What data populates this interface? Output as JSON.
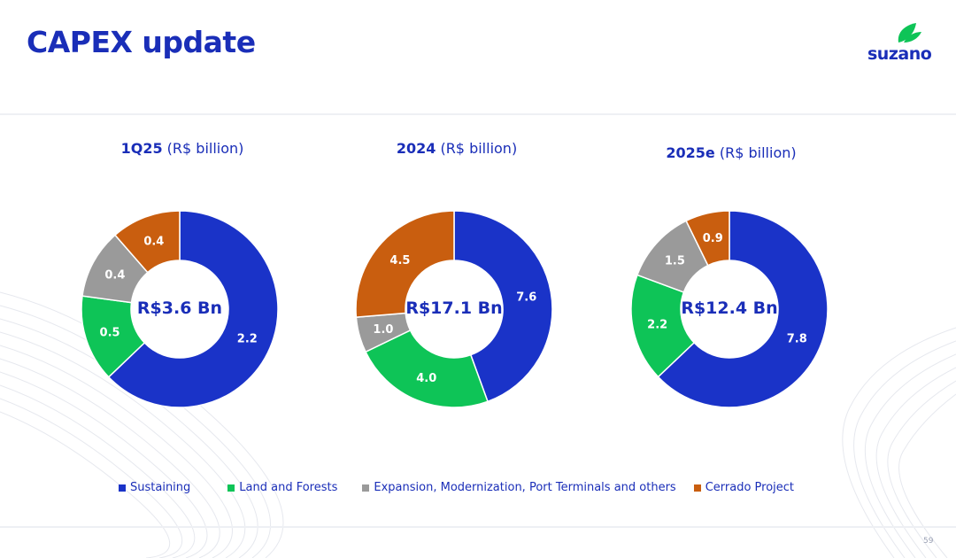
{
  "page": {
    "title": "CAPEX update",
    "logo_text": "suzano",
    "page_number": "59"
  },
  "colors": {
    "sustaining": "#1a33c8",
    "land_forests": "#0ec457",
    "expansion": "#9a9a9a",
    "cerrado": "#c95e0f"
  },
  "legend": [
    {
      "label": "Sustaining",
      "color": "#1a33c8"
    },
    {
      "label": "Land and Forests",
      "color": "#0ec457"
    },
    {
      "label": "Expansion, Modernization, Port Terminals and others",
      "color": "#9a9a9a"
    },
    {
      "label": "Cerrado Project",
      "color": "#c95e0f"
    }
  ],
  "chart_data": [
    {
      "type": "pie",
      "title_bold": "1Q25",
      "title_unit": "(R$ billion)",
      "center_label": "R$3.6 Bn",
      "categories": [
        "Sustaining",
        "Land and Forests",
        "Expansion, Modernization, Port Terminals and others",
        "Cerrado Project"
      ],
      "values": [
        2.2,
        0.5,
        0.4,
        0.4
      ],
      "labels": [
        "2.2",
        "0.5",
        "0.4",
        "0.4"
      ]
    },
    {
      "type": "pie",
      "title_bold": "2024",
      "title_unit": "(R$ billion)",
      "center_label": "R$17.1 Bn",
      "categories": [
        "Sustaining",
        "Land and Forests",
        "Expansion, Modernization, Port Terminals and others",
        "Cerrado Project"
      ],
      "values": [
        7.6,
        4.0,
        1.0,
        4.5
      ],
      "labels": [
        "7.6",
        "4.0",
        "1.0",
        "4.5"
      ]
    },
    {
      "type": "pie",
      "title_bold": "2025e",
      "title_unit": "(R$ billion)",
      "center_label": "R$12.4 Bn",
      "categories": [
        "Sustaining",
        "Land and Forests",
        "Expansion, Modernization, Port Terminals and others",
        "Cerrado Project"
      ],
      "values": [
        7.8,
        2.2,
        1.5,
        0.9
      ],
      "labels": [
        "7.8",
        "2.2",
        "1.5",
        "0.9"
      ]
    }
  ]
}
